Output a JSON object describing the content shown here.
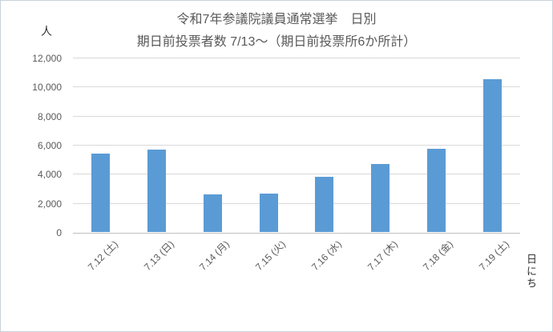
{
  "chart_data": {
    "type": "bar",
    "title_line1": "令和7年参議院議員通常選挙　日別",
    "title_line2": "期日前投票者数 7/13～（期日前投票所6か所計）",
    "y_axis_title": "人",
    "x_axis_title": "日にち",
    "categories": [
      "7.12 (土)",
      "7.13 (日)",
      "7.14 (月)",
      "7.15 (火)",
      "7.16 (水)",
      "7.17 (木)",
      "7.18 (金)",
      "7.19 (土)"
    ],
    "values": [
      5400,
      5650,
      2600,
      2650,
      3800,
      4700,
      5700,
      10500
    ],
    "ylim": [
      0,
      12000
    ],
    "y_tick_step": 2000,
    "y_tick_labels": [
      "0",
      "2,000",
      "4,000",
      "6,000",
      "8,000",
      "10,000",
      "12,000"
    ],
    "grid": true,
    "legend": "none",
    "bar_color": "#5B9BD5",
    "gridline_color": "#D9D9D9",
    "zero_line_color": "#BFBFBF",
    "text_color": "#595959"
  }
}
